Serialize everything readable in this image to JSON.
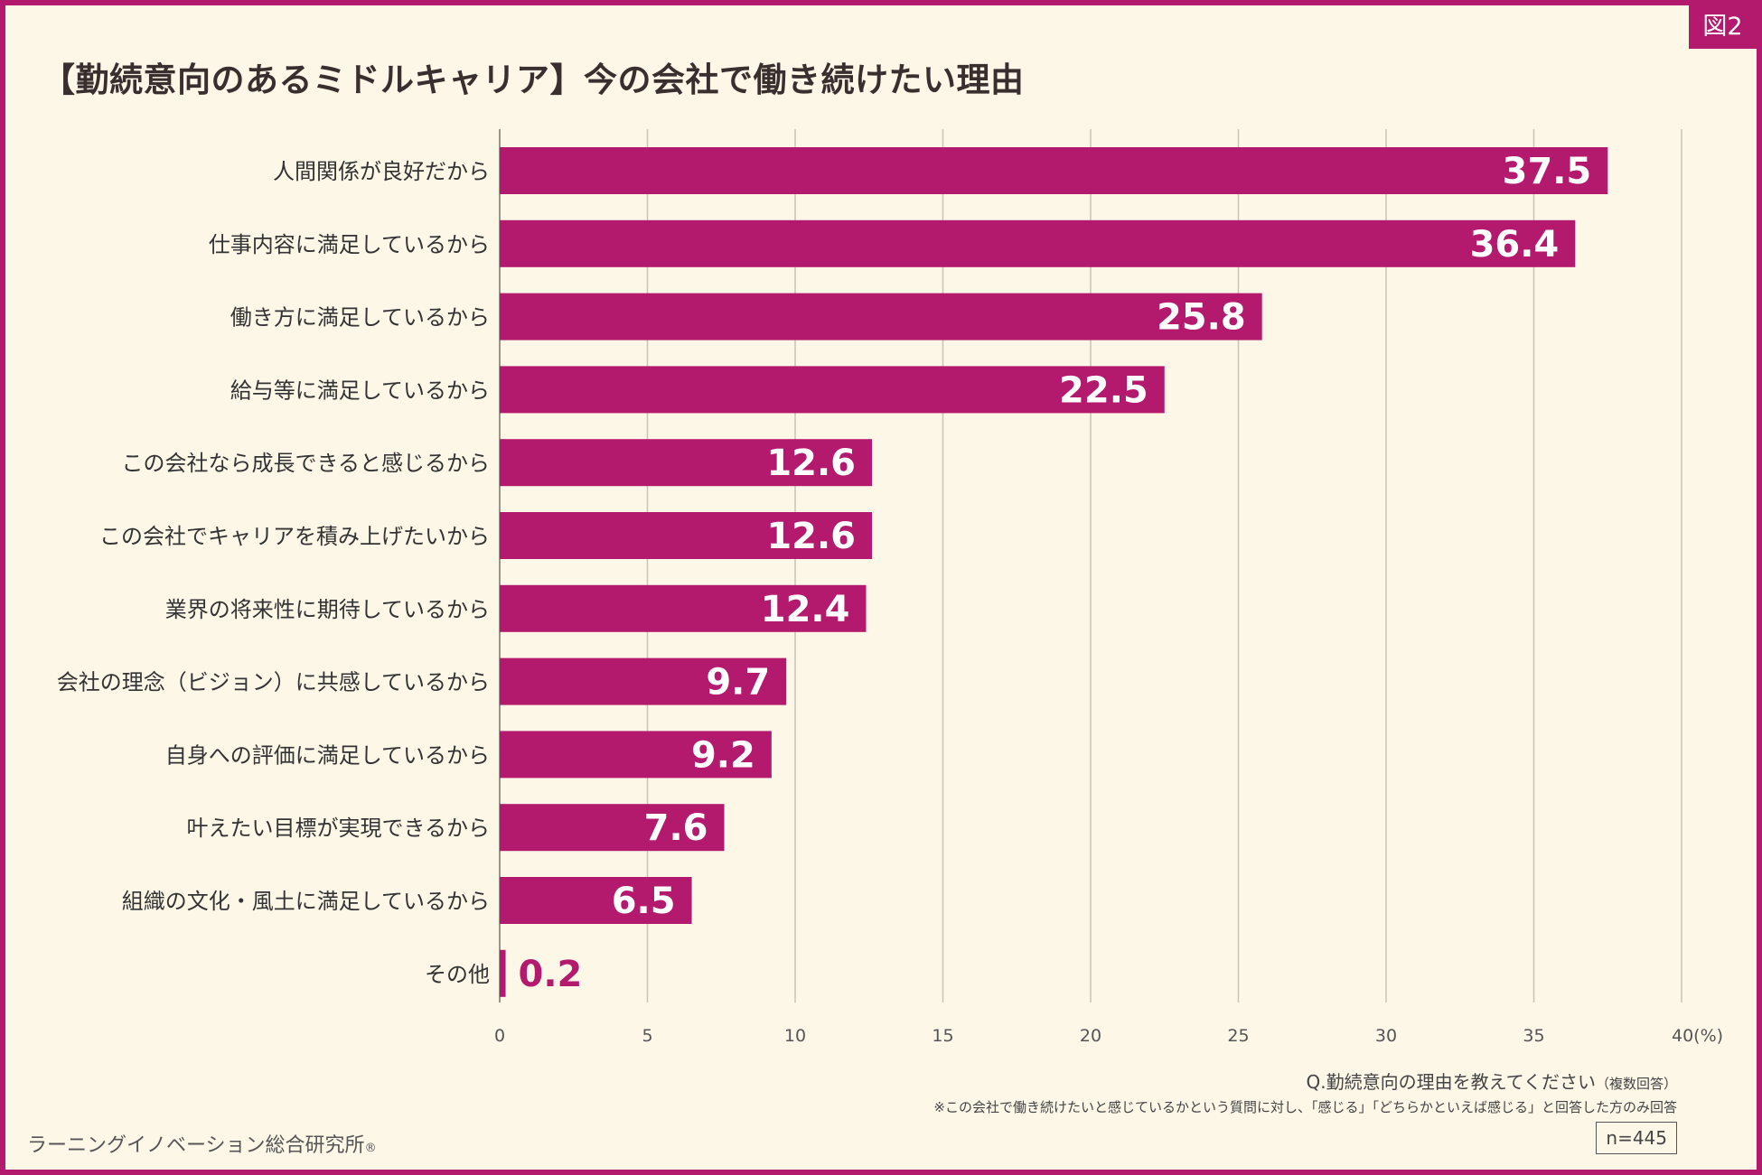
{
  "badge": "図2",
  "title": "【勤続意向のあるミドルキャリア】今の会社で働き続けたい理由",
  "chart_data": {
    "type": "bar",
    "orientation": "horizontal",
    "categories": [
      "人間関係が良好だから",
      "仕事内容に満足しているから",
      "働き方に満足しているから",
      "給与等に満足しているから",
      "この会社なら成長できると感じるから",
      "この会社でキャリアを積み上げたいから",
      "業界の将来性に期待しているから",
      "会社の理念（ビジョン）に共感しているから",
      "自身への評価に満足しているから",
      "叶えたい目標が実現できるから",
      "組織の文化・風土に満足しているから",
      "その他"
    ],
    "values": [
      37.5,
      36.4,
      25.8,
      22.5,
      12.6,
      12.6,
      12.4,
      9.7,
      9.2,
      7.6,
      6.5,
      0.2
    ],
    "value_labels": [
      "37.5",
      "36.4",
      "25.8",
      "22.5",
      "12.6",
      "12.6",
      "12.4",
      "9.7",
      "9.2",
      "7.6",
      "6.5",
      "0.2"
    ],
    "xlim": [
      0,
      40
    ],
    "xticks": [
      0,
      5,
      10,
      15,
      20,
      25,
      30,
      35,
      40
    ],
    "xtick_labels": [
      "0",
      "5",
      "10",
      "15",
      "20",
      "25",
      "30",
      "35",
      "40(%)"
    ],
    "grid": true,
    "bar_color": "#b31a6e"
  },
  "footer": {
    "question": "Q.勤続意向の理由を教えてください",
    "question_note": "（複数回答）",
    "note": "※この会社で働き続けたいと感じているかという質問に対し、「感じる」「どちらかといえば感じる」と回答した方のみ回答",
    "sample": "n=445",
    "source": "ラーニングイノベーション総合研究所",
    "source_mark": "®"
  }
}
